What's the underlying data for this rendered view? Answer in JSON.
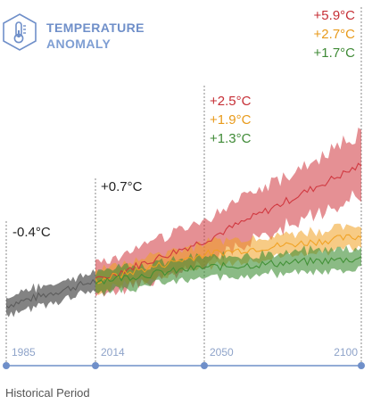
{
  "header": {
    "icon": "thermometer-icon",
    "title_line1": "TEMPERATURE",
    "title_line2": "ANOMALY"
  },
  "chart_data": {
    "type": "line",
    "title": "TEMPERATURE ANOMALY",
    "x_ticks": [
      "1985",
      "2014",
      "2050",
      "2100"
    ],
    "xlim": [
      1985,
      2100
    ],
    "historical_label": "Historical Period",
    "colors": {
      "historical": "#5a5a5a",
      "high": "#d0353c",
      "medium": "#f0a020",
      "low": "#3e8e33",
      "axis": "#6f8fc9",
      "guide": "#8a8a8a"
    },
    "markers": [
      {
        "year": 1985,
        "labels": [
          "-0.4°C"
        ],
        "label_colors": [
          "#222222"
        ]
      },
      {
        "year": 2014,
        "labels": [
          "+0.7°C"
        ],
        "label_colors": [
          "#222222"
        ]
      },
      {
        "year": 2050,
        "labels": [
          "+2.5°C",
          "+1.9°C",
          "+1.3°C"
        ],
        "label_colors": [
          "#c62f36",
          "#e89a1a",
          "#3f8a36"
        ]
      },
      {
        "year": 2100,
        "labels": [
          "+5.9°C",
          "+2.7°C",
          "+1.7°C"
        ],
        "label_colors": [
          "#c62f36",
          "#e89a1a",
          "#3f8a36"
        ]
      }
    ],
    "series": [
      {
        "key": "historical",
        "x": [
          1985,
          2014
        ],
        "y": [
          -0.4,
          0.7
        ]
      },
      {
        "key": "high",
        "x": [
          2014,
          2050,
          2100
        ],
        "y": [
          0.7,
          2.5,
          5.9
        ]
      },
      {
        "key": "medium",
        "x": [
          2014,
          2050,
          2100
        ],
        "y": [
          0.7,
          1.9,
          2.7
        ]
      },
      {
        "key": "low",
        "x": [
          2014,
          2050,
          2100
        ],
        "y": [
          0.7,
          1.3,
          1.7
        ]
      }
    ]
  }
}
